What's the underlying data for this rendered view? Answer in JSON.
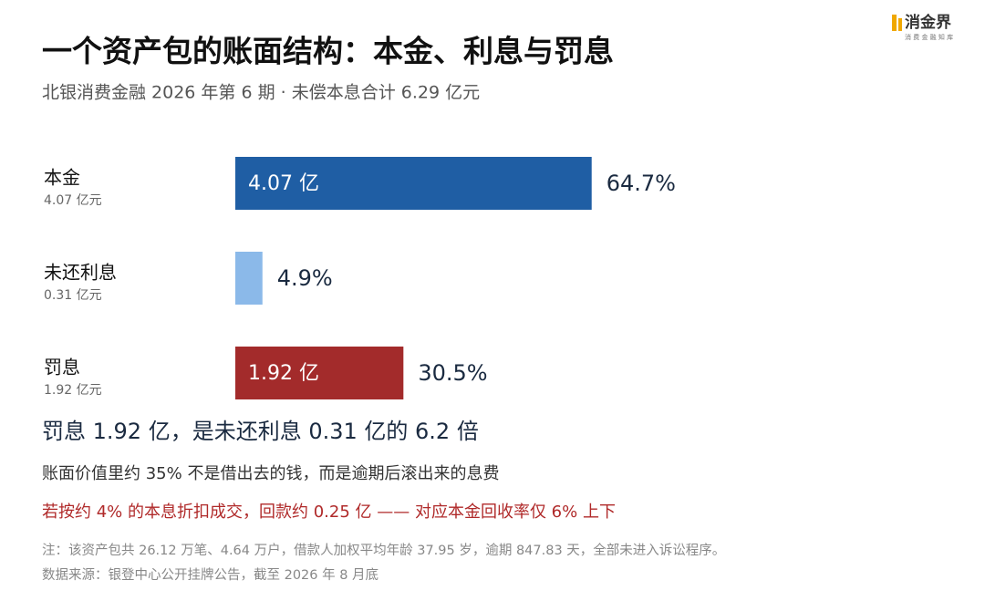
{
  "chart_data": {
    "type": "bar",
    "title": "一个资产包的账面结构：本金、利息与罚息",
    "subtitle": "北银消费金融 2026 年第 6 期 · 未偿本息合计 6.29 亿元",
    "categories": [
      "本金",
      "未还利息",
      "罚息"
    ],
    "sub_labels": [
      "4.07 亿元",
      "0.31 亿元",
      "1.92 亿元"
    ],
    "values": [
      4.07,
      0.31,
      1.92
    ],
    "value_labels": [
      "4.07 亿",
      null,
      "1.92 亿"
    ],
    "percent_values": [
      64.7,
      4.9,
      30.5
    ],
    "percent_labels": [
      "64.7%",
      "4.9%",
      "30.5%"
    ],
    "colors": [
      "#1f5ea4",
      "#8bb9e9",
      "#a32b2b"
    ],
    "xlim": [
      0,
      5
    ],
    "headline": "罚息 1.92 亿，是未还利息 0.31 亿的 6.2 倍",
    "note_line": "账面价值里约 35% 不是借出去的钱，而是逾期后滚出来的息费",
    "red_line": "若按约 4% 的本息折扣成交，回款约 0.25 亿 —— 对应本金回收率仅 6% 上下",
    "footnote": "注：该资产包共 26.12 万笔、4.64 万户，借款人加权平均年龄 37.95 岁，逾期 847.83 天，全部未进入诉讼程序。",
    "source": "数据来源：银登中心公开挂牌公告，截至 2026 年 8 月底",
    "brand": "消金界",
    "brand_sub": "消 费 金 融 知 库"
  }
}
